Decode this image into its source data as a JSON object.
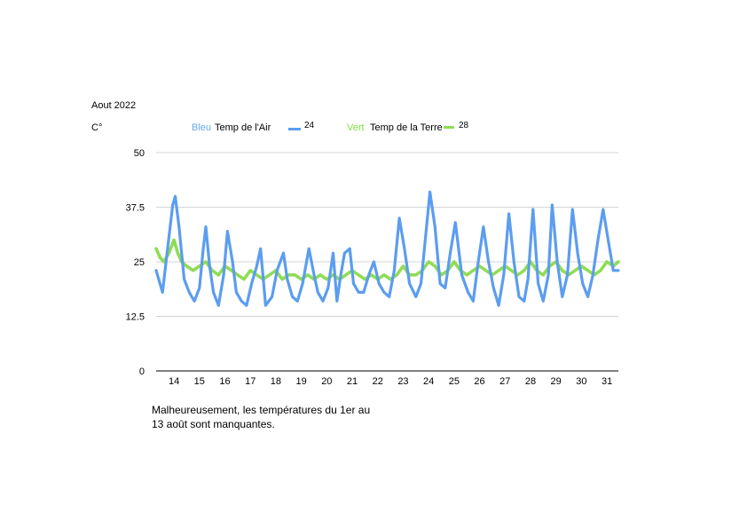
{
  "header": {
    "period": "Aout  2022",
    "unit": "C°"
  },
  "legend": {
    "air_prefix": "Bleu",
    "air_label": "Temp de l'Air",
    "air_value": "24",
    "ground_prefix": "Vert",
    "ground_label": "Temp de la Terre",
    "ground_value": "28"
  },
  "note": "Malheureusement, les températures du 1er au 13 août sont manquantes.",
  "colors": {
    "air": "#5b9df0",
    "ground": "#8fdc55",
    "grid": "#c8c8c8"
  },
  "chart_data": {
    "type": "line",
    "ylim": [
      0,
      50
    ],
    "yticks": [
      "0",
      "12.5",
      "25",
      "37.5",
      "50"
    ],
    "ytick_values": [
      0,
      12.5,
      25,
      37.5,
      50
    ],
    "xlim": [
      13.3,
      31.45
    ],
    "xticks": [
      "14",
      "15",
      "16",
      "17",
      "18",
      "19",
      "20",
      "21",
      "22",
      "23",
      "24",
      "25",
      "26",
      "27",
      "28",
      "29",
      "30",
      "31"
    ],
    "xtick_values": [
      14,
      15,
      16,
      17,
      18,
      19,
      20,
      21,
      22,
      23,
      24,
      25,
      26,
      27,
      28,
      29,
      30,
      31
    ],
    "grid": true,
    "series": [
      {
        "name": "Temp de l'Air",
        "color": "#5b9df0",
        "x": [
          13.3,
          13.55,
          13.75,
          13.95,
          14.05,
          14.2,
          14.4,
          14.6,
          14.8,
          15.0,
          15.15,
          15.25,
          15.4,
          15.55,
          15.75,
          15.95,
          16.1,
          16.3,
          16.45,
          16.65,
          16.85,
          17.05,
          17.25,
          17.4,
          17.6,
          17.85,
          18.05,
          18.3,
          18.45,
          18.65,
          18.85,
          19.05,
          19.3,
          19.5,
          19.65,
          19.85,
          20.05,
          20.25,
          20.4,
          20.55,
          20.7,
          20.9,
          21.05,
          21.25,
          21.45,
          21.65,
          21.85,
          22.05,
          22.25,
          22.45,
          22.65,
          22.85,
          23.05,
          23.25,
          23.5,
          23.7,
          23.9,
          24.05,
          24.25,
          24.45,
          24.65,
          24.85,
          25.05,
          25.3,
          25.55,
          25.75,
          25.95,
          26.15,
          26.35,
          26.55,
          26.75,
          26.95,
          27.15,
          27.35,
          27.55,
          27.75,
          27.9,
          28.1,
          28.3,
          28.5,
          28.7,
          28.85,
          29.05,
          29.25,
          29.45,
          29.65,
          29.85,
          30.05,
          30.25,
          30.45,
          30.65,
          30.85,
          31.05,
          31.25,
          31.45
        ],
        "y": [
          23,
          18,
          28,
          38,
          40,
          33,
          21,
          18,
          16,
          19,
          28,
          33,
          24,
          18,
          15,
          22,
          32,
          25,
          18,
          16,
          15,
          20,
          24,
          28,
          15,
          17,
          23,
          27,
          21,
          17,
          16,
          20,
          28,
          22,
          18,
          16,
          19,
          27,
          16,
          22,
          27,
          28,
          20,
          18,
          18,
          22,
          25,
          20,
          18,
          17,
          23,
          35,
          28,
          20,
          17,
          20,
          32,
          41,
          33,
          20,
          19,
          27,
          34,
          22,
          18,
          16,
          25,
          33,
          25,
          19,
          15,
          22,
          36,
          25,
          17,
          16,
          21,
          37,
          20,
          16,
          22,
          38,
          25,
          17,
          22,
          37,
          27,
          20,
          17,
          22,
          30,
          37,
          30,
          23,
          23
        ]
      },
      {
        "name": "Temp de la Terre",
        "color": "#8fdc55",
        "x": [
          13.3,
          13.45,
          13.6,
          13.8,
          14.0,
          14.15,
          14.3,
          14.5,
          14.75,
          15.0,
          15.25,
          15.5,
          15.75,
          16.0,
          16.25,
          16.5,
          16.75,
          17.0,
          17.25,
          17.5,
          17.75,
          18.0,
          18.25,
          18.5,
          18.75,
          19.0,
          19.25,
          19.5,
          19.75,
          20.0,
          20.25,
          20.5,
          20.75,
          21.0,
          21.25,
          21.5,
          21.75,
          22.0,
          22.25,
          22.5,
          22.75,
          23.0,
          23.25,
          23.5,
          23.75,
          24.0,
          24.25,
          24.5,
          24.75,
          25.0,
          25.25,
          25.5,
          25.75,
          26.0,
          26.25,
          26.5,
          26.75,
          27.0,
          27.25,
          27.5,
          27.75,
          28.0,
          28.25,
          28.5,
          28.75,
          29.0,
          29.25,
          29.5,
          29.75,
          30.0,
          30.25,
          30.5,
          30.75,
          31.0,
          31.25,
          31.45
        ],
        "y": [
          28,
          26,
          25,
          27,
          30,
          27,
          25,
          24,
          23,
          24,
          25,
          23,
          22,
          24,
          23,
          22,
          21,
          23,
          22,
          21,
          22,
          23,
          21,
          22,
          22,
          21,
          22,
          21,
          22,
          21,
          22,
          21,
          22,
          23,
          22,
          21,
          22,
          21,
          22,
          21,
          22,
          24,
          22,
          22,
          23,
          25,
          24,
          22,
          23,
          25,
          23,
          22,
          23,
          24,
          23,
          22,
          23,
          24,
          23,
          22,
          23,
          25,
          23,
          22,
          24,
          25,
          23,
          22,
          23,
          24,
          23,
          22,
          23,
          25,
          24,
          25
        ]
      }
    ]
  }
}
